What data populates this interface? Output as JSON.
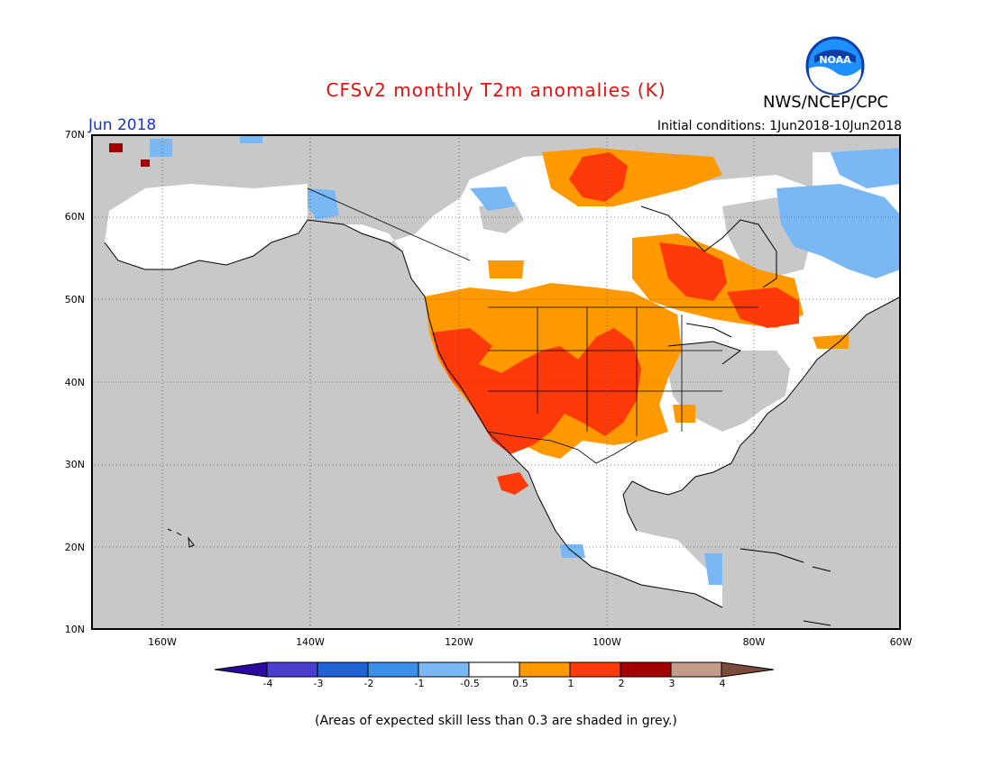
{
  "header": {
    "title": "CFSv2 monthly T2m anomalies (K)",
    "agency": "NWS/NCEP/CPC",
    "logo_text": "NOAA",
    "month": "Jun 2018",
    "initial_conditions": "Initial conditions: 1Jun2018-10Jun2018"
  },
  "map": {
    "region": "North America",
    "projection": "lat-lon",
    "lon_range": [
      -172,
      -60
    ],
    "lat_range": [
      10,
      70
    ],
    "lat_ticks": [
      "70N",
      "60N",
      "50N",
      "40N",
      "30N",
      "20N",
      "10N"
    ],
    "lon_ticks": [
      "160W",
      "140W",
      "120W",
      "100W",
      "80W",
      "60W"
    ],
    "grid_style": "dotted",
    "ocean_color": "#c8c8c8",
    "low_skill_color": "#c8c8c8",
    "anomaly_regions": [
      {
        "name": "US West Coast / Great Basin",
        "category": "1 to 2",
        "color": "#ff3a0a"
      },
      {
        "name": "Southwest US / Four Corners",
        "category": "1 to 2",
        "color": "#ff3a0a"
      },
      {
        "name": "Central Plains",
        "category": "1 to 2",
        "color": "#ff3a0a"
      },
      {
        "name": "Hudson Bay / Central Canada",
        "category": "1 to 2",
        "color": "#ff3a0a"
      },
      {
        "name": "Northern Canada",
        "category": "1 to 2",
        "color": "#ff3a0a"
      },
      {
        "name": "Surrounding Western & Central regions",
        "category": "0.5 to 1",
        "color": "#ff9900"
      },
      {
        "name": "Labrador / Eastern Canada",
        "category": "-1 to -0.5",
        "color": "#7ab8f5"
      },
      {
        "name": "Alaska patches",
        "category": "-1 to -0.5",
        "color": "#7ab8f5"
      },
      {
        "name": "Mexico / Eastern US",
        "category": "-0.5 to 0.5",
        "color": "#ffffff"
      }
    ]
  },
  "colorbar": {
    "labels": [
      "-4",
      "-3",
      "-2",
      "-1",
      "-0.5",
      "0.5",
      "1",
      "2",
      "3",
      "4"
    ],
    "colors": [
      "#2a0a9e",
      "#4a3fd0",
      "#1f63d6",
      "#3d8ee8",
      "#7ab8f5",
      "#ffffff",
      "#ff9900",
      "#ff3a0a",
      "#a30000",
      "#c49a8a",
      "#7a4a3a"
    ]
  },
  "footer": {
    "note": "(Areas of expected skill less than 0.3 are shaded in grey.)"
  }
}
